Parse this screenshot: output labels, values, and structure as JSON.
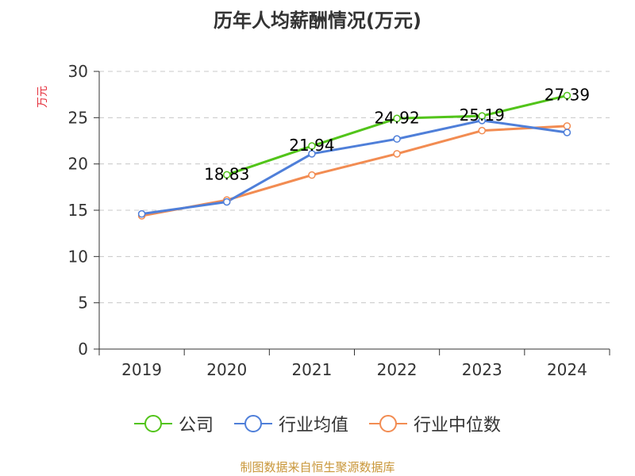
{
  "chart_data": {
    "type": "line",
    "title": "历年人均薪酬情况(万元)",
    "xlabel": "",
    "ylabel": "万元",
    "categories": [
      "2019",
      "2020",
      "2021",
      "2022",
      "2023",
      "2024"
    ],
    "ylim": [
      0,
      30
    ],
    "yticks": [
      0,
      5,
      10,
      15,
      20,
      25,
      30
    ],
    "grid": true,
    "legend_position": "bottom",
    "series": [
      {
        "name": "公司",
        "color": "#52c41a",
        "values": [
          null,
          18.83,
          21.94,
          24.92,
          25.19,
          27.39
        ],
        "labels": [
          "",
          "18.83",
          "21.94",
          "24.92",
          "25.19",
          "27.39"
        ]
      },
      {
        "name": "行业均值",
        "color": "#4f7fd9",
        "values": [
          14.6,
          15.9,
          21.1,
          22.7,
          24.7,
          23.4
        ]
      },
      {
        "name": "行业中位数",
        "color": "#f28c52",
        "values": [
          14.4,
          16.1,
          18.8,
          21.1,
          23.6,
          24.1
        ]
      }
    ]
  },
  "source": "制图数据来自恒生聚源数据库"
}
